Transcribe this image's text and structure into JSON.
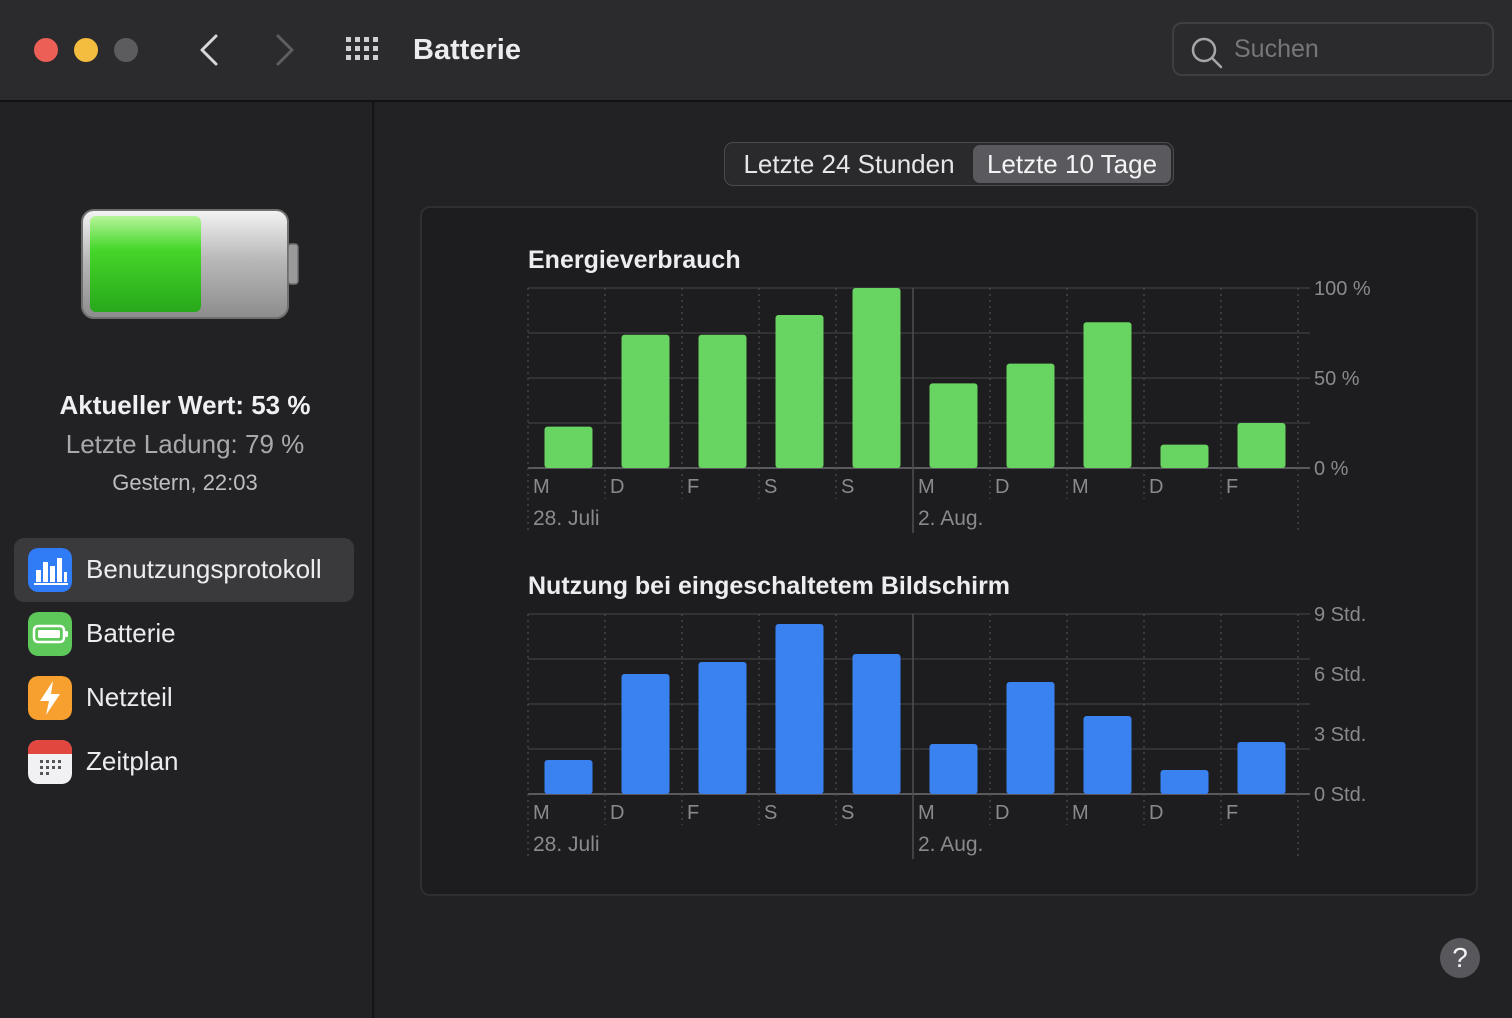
{
  "window": {
    "title": "Batterie",
    "search_placeholder": "Suchen"
  },
  "sidebar": {
    "battery_level": 0.53,
    "current_value": "Aktueller Wert: 53 %",
    "last_charge": "Letzte Ladung: 79 %",
    "last_charge_time": "Gestern, 22:03",
    "items": [
      {
        "label": "Benutzungsprotokoll",
        "icon": "bar-chart-icon",
        "active": true
      },
      {
        "label": "Batterie",
        "icon": "battery-icon",
        "active": false
      },
      {
        "label": "Netzteil",
        "icon": "lightning-icon",
        "active": false
      },
      {
        "label": "Zeitplan",
        "icon": "calendar-icon",
        "active": false
      }
    ]
  },
  "segmented_control": {
    "options": [
      "Letzte 24 Stunden",
      "Letzte 10 Tage"
    ],
    "selected": "Letzte 10 Tage"
  },
  "help_label": "?",
  "colors": {
    "energy_bar": "#68d461",
    "screen_bar": "#3b82f1",
    "accent_blue": "#2f7cf6"
  },
  "chart_data": [
    {
      "type": "bar",
      "title": "Energieverbrauch",
      "categories": [
        "M",
        "D",
        "F",
        "S",
        "S",
        "M",
        "D",
        "M",
        "D",
        "F"
      ],
      "date_labels": [
        {
          "index": 0,
          "label": "28. Juli"
        },
        {
          "index": 5,
          "label": "2. Aug."
        }
      ],
      "values": [
        23,
        74,
        74,
        85,
        100,
        47,
        58,
        81,
        13,
        25
      ],
      "ylim": [
        0,
        100
      ],
      "ytick_labels": [
        "100 %",
        "50 %",
        "0 %"
      ],
      "ytick_values": [
        100,
        50,
        0
      ],
      "grid": true
    },
    {
      "type": "bar",
      "title": "Nutzung bei eingeschaltetem Bildschirm",
      "categories": [
        "M",
        "D",
        "F",
        "S",
        "S",
        "M",
        "D",
        "M",
        "D",
        "F"
      ],
      "date_labels": [
        {
          "index": 0,
          "label": "28. Juli"
        },
        {
          "index": 5,
          "label": "2. Aug."
        }
      ],
      "values": [
        1.7,
        6.0,
        6.6,
        8.5,
        7.0,
        2.5,
        5.6,
        3.9,
        1.2,
        2.6
      ],
      "ylim": [
        0,
        9
      ],
      "ytick_labels": [
        "9 Std.",
        "6 Std.",
        "3 Std.",
        "0 Std."
      ],
      "ytick_values": [
        9,
        6,
        3,
        0
      ],
      "grid": true
    }
  ]
}
